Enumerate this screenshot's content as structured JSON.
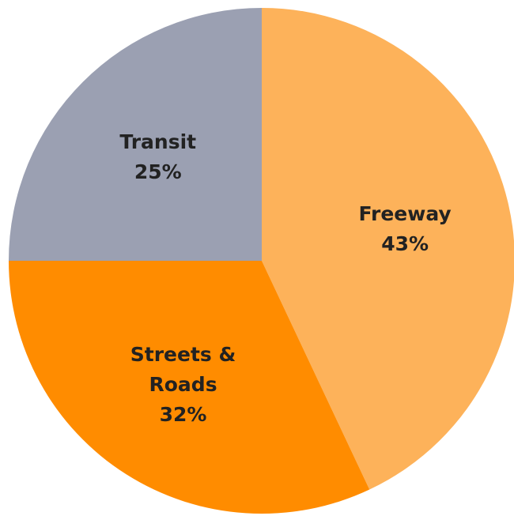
{
  "chart_data": {
    "type": "pie",
    "categories": [
      "Freeway",
      "Streets & Roads",
      "Transit"
    ],
    "values": [
      43,
      32,
      25
    ],
    "value_labels": [
      "43%",
      "32%",
      "25%"
    ],
    "colors": [
      "#fdb25a",
      "#ff8c00",
      "#9ba0b2"
    ]
  }
}
